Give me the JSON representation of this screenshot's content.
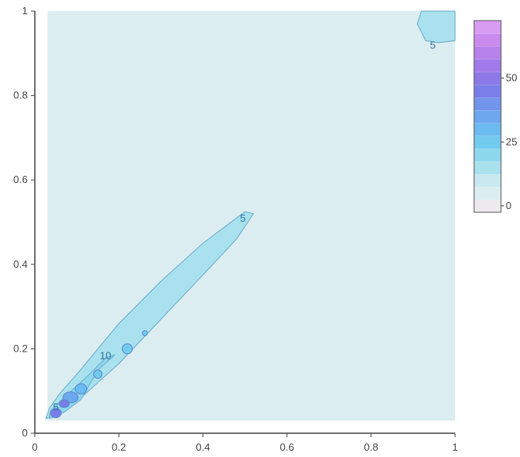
{
  "chart_data": {
    "type": "contour",
    "xlim": [
      0,
      1
    ],
    "ylim": [
      0,
      1
    ],
    "x_ticks": [
      "0",
      "0.2",
      "0.4",
      "0.6",
      "0.8",
      "1"
    ],
    "y_ticks": [
      "0",
      "0.2",
      "0.4",
      "0.6",
      "0.8",
      "1"
    ],
    "x_tick_values": [
      0,
      0.2,
      0.4,
      0.6,
      0.8,
      1
    ],
    "y_tick_values": [
      0,
      0.2,
      0.4,
      0.6,
      0.8,
      1
    ],
    "data_extent": {
      "x": [
        0.03,
        1
      ],
      "y": [
        0.03,
        1
      ]
    },
    "colorbar": {
      "ticks": [
        "0",
        "25",
        "50"
      ],
      "tick_values": [
        0,
        25,
        50
      ],
      "range": [
        -2.5,
        72.5
      ],
      "levels": 15,
      "colors": [
        "#eceaec",
        "#dcedf1",
        "#c8e9ef",
        "#a9e1ee",
        "#8ed8ee",
        "#72cbee",
        "#6bbaf0",
        "#6da8ef",
        "#7394ec",
        "#7a7ee8",
        "#8c78e6",
        "#a07be9",
        "#b782ea",
        "#c98aed",
        "#d89cf2"
      ]
    },
    "contours": [
      {
        "level": 5,
        "label": "5",
        "color": "#a9e1ee",
        "label_at": [
          0.495,
          0.508
        ],
        "path": [
          [
            0.026,
            0.034
          ],
          [
            0.06,
            0.05
          ],
          [
            0.1,
            0.075
          ],
          [
            0.2,
            0.165
          ],
          [
            0.3,
            0.27
          ],
          [
            0.4,
            0.375
          ],
          [
            0.48,
            0.46
          ],
          [
            0.52,
            0.52
          ],
          [
            0.5,
            0.525
          ],
          [
            0.4,
            0.45
          ],
          [
            0.3,
            0.36
          ],
          [
            0.2,
            0.26
          ],
          [
            0.1,
            0.14
          ],
          [
            0.06,
            0.095
          ],
          [
            0.035,
            0.06
          ],
          [
            0.026,
            0.034
          ]
        ]
      },
      {
        "level": 5,
        "label": "5",
        "color": "#a9e1ee",
        "label_at": [
          0.947,
          0.918
        ],
        "path": [
          [
            0.92,
            1.0
          ],
          [
            0.91,
            0.97
          ],
          [
            0.93,
            0.93
          ],
          [
            0.96,
            0.925
          ],
          [
            1.0,
            0.93
          ],
          [
            1.0,
            1.0
          ]
        ]
      },
      {
        "level": 10,
        "label": "10",
        "color": "#8ed8ee",
        "label_at": [
          0.168,
          0.183
        ],
        "path": [
          [
            0.04,
            0.04
          ],
          [
            0.07,
            0.05
          ],
          [
            0.11,
            0.08
          ],
          [
            0.15,
            0.15
          ],
          [
            0.19,
            0.185
          ],
          [
            0.17,
            0.18
          ],
          [
            0.12,
            0.13
          ],
          [
            0.07,
            0.085
          ],
          [
            0.045,
            0.06
          ],
          [
            0.04,
            0.04
          ]
        ]
      },
      {
        "level": 5,
        "label": "5",
        "color": "#8ed8ee",
        "label_at": [
          0.05,
          0.061
        ],
        "path": [
          [
            0.035,
            0.035
          ],
          [
            0.055,
            0.04
          ],
          [
            0.06,
            0.055
          ],
          [
            0.045,
            0.06
          ],
          [
            0.035,
            0.045
          ],
          [
            0.035,
            0.035
          ]
        ]
      },
      {
        "level": 20,
        "color": "#72cbee",
        "ellipse": {
          "cx": 0.22,
          "cy": 0.2,
          "rx": 0.012,
          "ry": 0.012
        }
      },
      {
        "level": 20,
        "color": "#72cbee",
        "ellipse": {
          "cx": 0.262,
          "cy": 0.237,
          "rx": 0.006,
          "ry": 0.006
        }
      },
      {
        "level": 20,
        "color": "#72cbee",
        "ellipse": {
          "cx": 0.15,
          "cy": 0.14,
          "rx": 0.01,
          "ry": 0.01
        }
      },
      {
        "level": 25,
        "color": "#6bbaf0",
        "ellipse": {
          "cx": 0.11,
          "cy": 0.105,
          "rx": 0.014,
          "ry": 0.012
        }
      },
      {
        "level": 30,
        "color": "#6da8ef",
        "ellipse": {
          "cx": 0.085,
          "cy": 0.085,
          "rx": 0.018,
          "ry": 0.013
        }
      },
      {
        "level": 40,
        "color": "#7a7ee8",
        "ellipse": {
          "cx": 0.07,
          "cy": 0.07,
          "rx": 0.012,
          "ry": 0.009
        }
      },
      {
        "level": 45,
        "color": "#7a7ee8",
        "ellipse": {
          "cx": 0.05,
          "cy": 0.048,
          "rx": 0.013,
          "ry": 0.011
        }
      }
    ],
    "title": "",
    "xlabel": "",
    "ylabel": ""
  }
}
